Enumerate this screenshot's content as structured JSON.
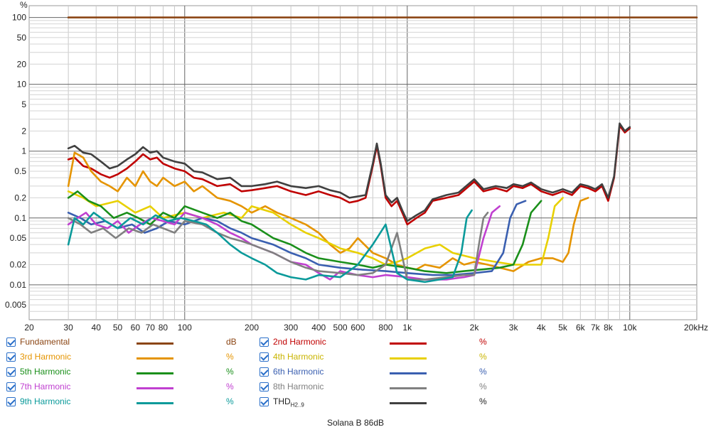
{
  "chart_data": {
    "type": "line",
    "title": "Solana B 86dB",
    "y_unit_label": "%",
    "x_scale": "log",
    "y_scale": "log",
    "xlim": [
      20,
      20000
    ],
    "ylim": [
      0.003,
      150
    ],
    "x_ticks": [
      {
        "v": 20,
        "label": "20"
      },
      {
        "v": 30,
        "label": "30"
      },
      {
        "v": 40,
        "label": "40"
      },
      {
        "v": 50,
        "label": "50"
      },
      {
        "v": 60,
        "label": "60"
      },
      {
        "v": 70,
        "label": "70"
      },
      {
        "v": 80,
        "label": "80"
      },
      {
        "v": 100,
        "label": "100"
      },
      {
        "v": 200,
        "label": "200"
      },
      {
        "v": 300,
        "label": "300"
      },
      {
        "v": 400,
        "label": "400"
      },
      {
        "v": 500,
        "label": "500"
      },
      {
        "v": 600,
        "label": "600"
      },
      {
        "v": 800,
        "label": "800"
      },
      {
        "v": 1000,
        "label": "1k"
      },
      {
        "v": 2000,
        "label": "2k"
      },
      {
        "v": 3000,
        "label": "3k"
      },
      {
        "v": 4000,
        "label": "4k"
      },
      {
        "v": 5000,
        "label": "5k"
      },
      {
        "v": 6000,
        "label": "6k"
      },
      {
        "v": 7000,
        "label": "7k"
      },
      {
        "v": 8000,
        "label": "8k"
      },
      {
        "v": 10000,
        "label": "10k"
      },
      {
        "v": 20000,
        "label": "20kHz"
      }
    ],
    "y_ticks": [
      {
        "v": 100,
        "label": "100"
      },
      {
        "v": 50,
        "label": "50"
      },
      {
        "v": 20,
        "label": "20"
      },
      {
        "v": 10,
        "label": "10"
      },
      {
        "v": 5,
        "label": "5"
      },
      {
        "v": 2,
        "label": "2"
      },
      {
        "v": 1,
        "label": "1"
      },
      {
        "v": 0.5,
        "label": "0.5"
      },
      {
        "v": 0.2,
        "label": "0.2"
      },
      {
        "v": 0.1,
        "label": "0.1"
      },
      {
        "v": 0.05,
        "label": "0.05"
      },
      {
        "v": 0.02,
        "label": "0.02"
      },
      {
        "v": 0.01,
        "label": "0.01"
      },
      {
        "v": 0.005,
        "label": "0.005"
      }
    ],
    "grid": true,
    "series": [
      {
        "name": "Fundamental",
        "unit": "dB",
        "color": "#8b4513",
        "x": [
          30,
          10000,
          20000
        ],
        "y": [
          100,
          100,
          100
        ]
      },
      {
        "name": "2nd Harmonic",
        "unit": "%",
        "color": "#c00000",
        "x": [
          30,
          32,
          35,
          38,
          42,
          46,
          50,
          55,
          60,
          65,
          70,
          75,
          80,
          90,
          100,
          110,
          120,
          140,
          160,
          180,
          200,
          230,
          260,
          300,
          350,
          400,
          450,
          500,
          550,
          600,
          650,
          700,
          730,
          760,
          800,
          850,
          900,
          950,
          1000,
          1100,
          1200,
          1300,
          1500,
          1700,
          2000,
          2200,
          2500,
          2800,
          3000,
          3300,
          3600,
          4000,
          4500,
          5000,
          5500,
          6000,
          6500,
          7000,
          7500,
          8000,
          8500,
          9000,
          9500,
          10000
        ],
        "y": [
          0.75,
          0.8,
          0.6,
          0.55,
          0.45,
          0.4,
          0.45,
          0.55,
          0.7,
          0.9,
          0.75,
          0.8,
          0.65,
          0.55,
          0.5,
          0.4,
          0.38,
          0.3,
          0.32,
          0.25,
          0.26,
          0.28,
          0.3,
          0.25,
          0.22,
          0.25,
          0.22,
          0.2,
          0.17,
          0.18,
          0.2,
          0.6,
          1.2,
          0.6,
          0.2,
          0.15,
          0.18,
          0.12,
          0.08,
          0.1,
          0.12,
          0.18,
          0.2,
          0.22,
          0.35,
          0.25,
          0.28,
          0.25,
          0.3,
          0.28,
          0.32,
          0.25,
          0.22,
          0.25,
          0.22,
          0.3,
          0.28,
          0.25,
          0.3,
          0.18,
          0.4,
          2.4,
          1.9,
          2.2
        ]
      },
      {
        "name": "3rd Harmonic",
        "unit": "%",
        "color": "#e59400",
        "x": [
          30,
          32,
          35,
          38,
          42,
          46,
          50,
          55,
          60,
          65,
          70,
          75,
          80,
          90,
          100,
          110,
          120,
          140,
          160,
          180,
          200,
          230,
          260,
          300,
          350,
          400,
          450,
          500,
          550,
          600,
          700,
          800,
          900,
          1000,
          1100,
          1200,
          1400,
          1600,
          1800,
          2000,
          2300,
          2600,
          3000,
          3500,
          4000,
          4500,
          5000,
          5300,
          5600,
          6000,
          6500
        ],
        "y": [
          0.3,
          0.95,
          0.8,
          0.5,
          0.35,
          0.3,
          0.25,
          0.4,
          0.3,
          0.5,
          0.35,
          0.3,
          0.4,
          0.3,
          0.35,
          0.25,
          0.3,
          0.2,
          0.18,
          0.15,
          0.12,
          0.15,
          0.12,
          0.1,
          0.08,
          0.06,
          0.04,
          0.03,
          0.035,
          0.05,
          0.03,
          0.025,
          0.02,
          0.018,
          0.017,
          0.02,
          0.018,
          0.025,
          0.02,
          0.022,
          0.02,
          0.018,
          0.016,
          0.022,
          0.025,
          0.025,
          0.022,
          0.03,
          0.08,
          0.18,
          0.2
        ]
      },
      {
        "name": "4th Harmonic",
        "unit": "%",
        "color": "#e8d000",
        "x": [
          30,
          35,
          40,
          50,
          60,
          70,
          80,
          100,
          120,
          150,
          180,
          200,
          250,
          300,
          350,
          400,
          500,
          600,
          700,
          800,
          900,
          1000,
          1200,
          1400,
          1600,
          2000,
          2500,
          3000,
          3500,
          4000,
          4300,
          4600,
          5000
        ],
        "y": [
          0.25,
          0.2,
          0.15,
          0.18,
          0.12,
          0.15,
          0.1,
          0.12,
          0.1,
          0.12,
          0.1,
          0.15,
          0.12,
          0.08,
          0.06,
          0.05,
          0.035,
          0.03,
          0.025,
          0.02,
          0.022,
          0.025,
          0.035,
          0.04,
          0.03,
          0.025,
          0.022,
          0.02,
          0.02,
          0.02,
          0.05,
          0.15,
          0.2
        ]
      },
      {
        "name": "5th Harmonic",
        "unit": "%",
        "color": "#1a8f1a",
        "x": [
          30,
          33,
          37,
          42,
          48,
          55,
          62,
          70,
          80,
          90,
          100,
          120,
          140,
          160,
          180,
          200,
          250,
          300,
          350,
          400,
          500,
          600,
          700,
          800,
          1000,
          1200,
          1500,
          1800,
          2200,
          2600,
          3000,
          3300,
          3600,
          4000
        ],
        "y": [
          0.2,
          0.25,
          0.18,
          0.15,
          0.1,
          0.12,
          0.1,
          0.08,
          0.12,
          0.1,
          0.15,
          0.12,
          0.1,
          0.12,
          0.09,
          0.08,
          0.05,
          0.04,
          0.03,
          0.025,
          0.022,
          0.02,
          0.018,
          0.02,
          0.018,
          0.016,
          0.015,
          0.016,
          0.017,
          0.018,
          0.02,
          0.04,
          0.12,
          0.18
        ]
      },
      {
        "name": "6th Harmonic",
        "unit": "%",
        "color": "#3a5fb0",
        "x": [
          30,
          34,
          38,
          44,
          50,
          58,
          66,
          75,
          85,
          100,
          120,
          140,
          160,
          180,
          200,
          250,
          300,
          350,
          400,
          500,
          600,
          800,
          1000,
          1300,
          1600,
          2000,
          2400,
          2700,
          2900,
          3100,
          3400
        ],
        "y": [
          0.12,
          0.1,
          0.08,
          0.09,
          0.07,
          0.08,
          0.06,
          0.07,
          0.09,
          0.08,
          0.1,
          0.09,
          0.07,
          0.06,
          0.05,
          0.04,
          0.03,
          0.025,
          0.02,
          0.018,
          0.017,
          0.016,
          0.015,
          0.014,
          0.014,
          0.015,
          0.016,
          0.03,
          0.1,
          0.16,
          0.18
        ]
      },
      {
        "name": "7th Harmonic",
        "unit": "%",
        "color": "#c040d0",
        "x": [
          30,
          33,
          36,
          40,
          45,
          50,
          56,
          63,
          71,
          80,
          90,
          100,
          120,
          140,
          160,
          180,
          200,
          250,
          300,
          350,
          400,
          450,
          500,
          600,
          700,
          800,
          1000,
          1200,
          1500,
          1800,
          2000,
          2200,
          2400,
          2600
        ],
        "y": [
          0.08,
          0.1,
          0.12,
          0.08,
          0.07,
          0.09,
          0.06,
          0.08,
          0.1,
          0.09,
          0.08,
          0.12,
          0.1,
          0.08,
          0.06,
          0.05,
          0.04,
          0.03,
          0.022,
          0.02,
          0.015,
          0.012,
          0.016,
          0.014,
          0.013,
          0.014,
          0.013,
          0.012,
          0.012,
          0.013,
          0.014,
          0.05,
          0.12,
          0.15
        ]
      },
      {
        "name": "8th Harmonic",
        "unit": "%",
        "color": "#808080",
        "x": [
          30,
          34,
          38,
          43,
          49,
          56,
          64,
          72,
          80,
          90,
          100,
          120,
          140,
          160,
          180,
          200,
          250,
          300,
          350,
          400,
          500,
          600,
          700,
          800,
          900,
          1000,
          1200,
          1500,
          1800,
          2000,
          2100,
          2200,
          2300
        ],
        "y": [
          0.1,
          0.08,
          0.06,
          0.07,
          0.05,
          0.07,
          0.06,
          0.08,
          0.07,
          0.06,
          0.09,
          0.08,
          0.06,
          0.05,
          0.045,
          0.04,
          0.03,
          0.022,
          0.018,
          0.016,
          0.015,
          0.014,
          0.015,
          0.02,
          0.06,
          0.012,
          0.012,
          0.013,
          0.014,
          0.014,
          0.04,
          0.1,
          0.12
        ]
      },
      {
        "name": "9th Harmonic",
        "unit": "%",
        "color": "#0a9a9a",
        "x": [
          30,
          32,
          35,
          39,
          44,
          50,
          57,
          65,
          74,
          84,
          96,
          110,
          125,
          140,
          160,
          180,
          200,
          230,
          260,
          300,
          350,
          400,
          500,
          600,
          700,
          800,
          900,
          1000,
          1200,
          1400,
          1600,
          1750,
          1850,
          1950
        ],
        "y": [
          0.04,
          0.1,
          0.08,
          0.12,
          0.09,
          0.07,
          0.1,
          0.08,
          0.11,
          0.09,
          0.1,
          0.09,
          0.08,
          0.06,
          0.04,
          0.03,
          0.025,
          0.02,
          0.015,
          0.013,
          0.012,
          0.014,
          0.013,
          0.02,
          0.04,
          0.08,
          0.015,
          0.012,
          0.011,
          0.012,
          0.013,
          0.03,
          0.1,
          0.13
        ]
      },
      {
        "name": "THD H2..9",
        "unit": "%",
        "color": "#404040",
        "x": [
          30,
          32,
          35,
          38,
          42,
          46,
          50,
          55,
          60,
          65,
          70,
          75,
          80,
          90,
          100,
          110,
          120,
          140,
          160,
          180,
          200,
          230,
          260,
          300,
          350,
          400,
          450,
          500,
          550,
          600,
          650,
          700,
          730,
          760,
          800,
          850,
          900,
          950,
          1000,
          1100,
          1200,
          1300,
          1500,
          1700,
          2000,
          2200,
          2500,
          2800,
          3000,
          3300,
          3600,
          4000,
          4500,
          5000,
          5500,
          6000,
          6500,
          7000,
          7500,
          8000,
          8500,
          9000,
          9500,
          10000
        ],
        "y": [
          1.1,
          1.2,
          0.95,
          0.9,
          0.7,
          0.55,
          0.6,
          0.75,
          0.9,
          1.15,
          0.95,
          1.0,
          0.8,
          0.7,
          0.65,
          0.5,
          0.48,
          0.38,
          0.4,
          0.3,
          0.3,
          0.32,
          0.35,
          0.3,
          0.28,
          0.3,
          0.26,
          0.24,
          0.2,
          0.21,
          0.22,
          0.65,
          1.3,
          0.65,
          0.22,
          0.17,
          0.2,
          0.13,
          0.09,
          0.11,
          0.13,
          0.19,
          0.22,
          0.24,
          0.38,
          0.27,
          0.3,
          0.28,
          0.32,
          0.3,
          0.34,
          0.27,
          0.24,
          0.27,
          0.24,
          0.32,
          0.3,
          0.27,
          0.32,
          0.2,
          0.42,
          2.6,
          2.0,
          2.3
        ]
      }
    ]
  },
  "legend": [
    {
      "label": "Fundamental",
      "unit": "dB",
      "color": "#8b4513",
      "label_color": "#8b4513"
    },
    {
      "label": "2nd Harmonic",
      "unit": "%",
      "color": "#c00000",
      "label_color": "#c00000"
    },
    {
      "label": "3rd Harmonic",
      "unit": "%",
      "color": "#e59400",
      "label_color": "#e59400"
    },
    {
      "label": "4th Harmonic",
      "unit": "%",
      "color": "#e8d000",
      "label_color": "#c9b400"
    },
    {
      "label": "5th Harmonic",
      "unit": "%",
      "color": "#1a8f1a",
      "label_color": "#1a8f1a"
    },
    {
      "label": "6th Harmonic",
      "unit": "%",
      "color": "#3a5fb0",
      "label_color": "#3a5fb0"
    },
    {
      "label": "7th Harmonic",
      "unit": "%",
      "color": "#c040d0",
      "label_color": "#c040d0"
    },
    {
      "label": "8th Harmonic",
      "unit": "%",
      "color": "#808080",
      "label_color": "#808080"
    },
    {
      "label": "9th Harmonic",
      "unit": "%",
      "color": "#0a9a9a",
      "label_color": "#0a9a9a"
    },
    {
      "label": "THD",
      "label_sub": "H2..9",
      "unit": "%",
      "color": "#404040",
      "label_color": "#222222"
    }
  ],
  "footer": {
    "title": "Solana B 86dB"
  }
}
